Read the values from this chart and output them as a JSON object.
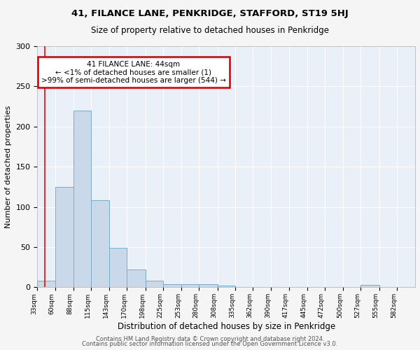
{
  "title1": "41, FILANCE LANE, PENKRIDGE, STAFFORD, ST19 5HJ",
  "title2": "Size of property relative to detached houses in Penkridge",
  "xlabel": "Distribution of detached houses by size in Penkridge",
  "ylabel": "Number of detached properties",
  "bar_values": [
    8,
    125,
    220,
    108,
    49,
    22,
    8,
    4,
    4,
    4,
    2,
    0,
    0,
    0,
    0,
    0,
    0,
    0,
    3,
    0,
    0
  ],
  "bin_edges": [
    33,
    60,
    88,
    115,
    143,
    170,
    198,
    225,
    253,
    280,
    308,
    335,
    362,
    390,
    417,
    445,
    472,
    500,
    527,
    555,
    582,
    610
  ],
  "xtick_labels": [
    "33sqm",
    "60sqm",
    "88sqm",
    "115sqm",
    "143sqm",
    "170sqm",
    "198sqm",
    "225sqm",
    "253sqm",
    "280sqm",
    "308sqm",
    "335sqm",
    "362sqm",
    "390sqm",
    "417sqm",
    "445sqm",
    "472sqm",
    "500sqm",
    "527sqm",
    "555sqm",
    "582sqm"
  ],
  "ylim": [
    0,
    300
  ],
  "bar_color": "#c9d9ea",
  "bar_edge_color": "#7aaccc",
  "bg_color": "#eaf0f8",
  "grid_color": "#ffffff",
  "red_line_x": 44,
  "annotation_title": "41 FILANCE LANE: 44sqm",
  "annotation_line1": "← <1% of detached houses are smaller (1)",
  "annotation_line2": ">99% of semi-detached houses are larger (544) →",
  "annotation_box_color": "#ffffff",
  "annotation_border_color": "#cc0000",
  "footer1": "Contains HM Land Registry data © Crown copyright and database right 2024.",
  "footer2": "Contains public sector information licensed under the Open Government Licence v3.0."
}
